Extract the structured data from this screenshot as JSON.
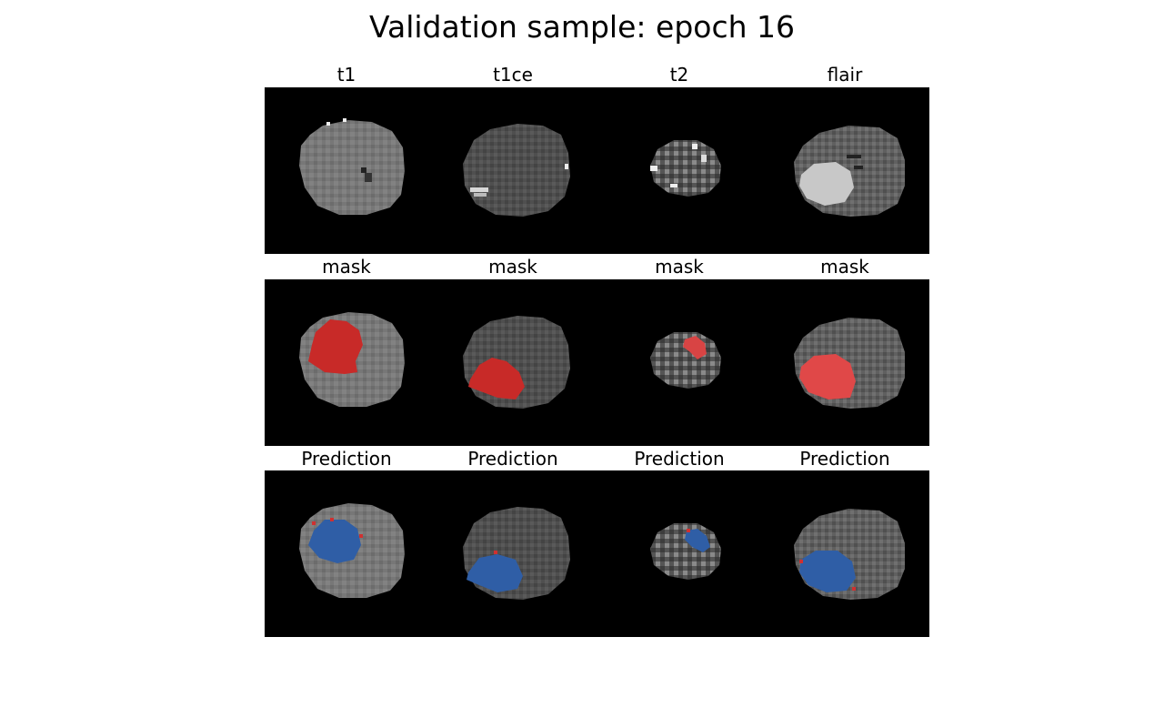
{
  "suptitle": "Validation sample: epoch 16",
  "rows": [
    {
      "titles": [
        "t1",
        "t1ce",
        "t2",
        "flair"
      ]
    },
    {
      "titles": [
        "mask",
        "mask",
        "mask",
        "mask"
      ]
    },
    {
      "titles": [
        "Prediction",
        "Prediction",
        "Prediction",
        "Prediction"
      ]
    }
  ],
  "colors": {
    "background": "#000000",
    "mask_overlay": "#c82a28",
    "mask_overlay_flair": "#e04848",
    "prediction_overlay": "#2f5ea6",
    "prediction_error": "#d03030"
  }
}
